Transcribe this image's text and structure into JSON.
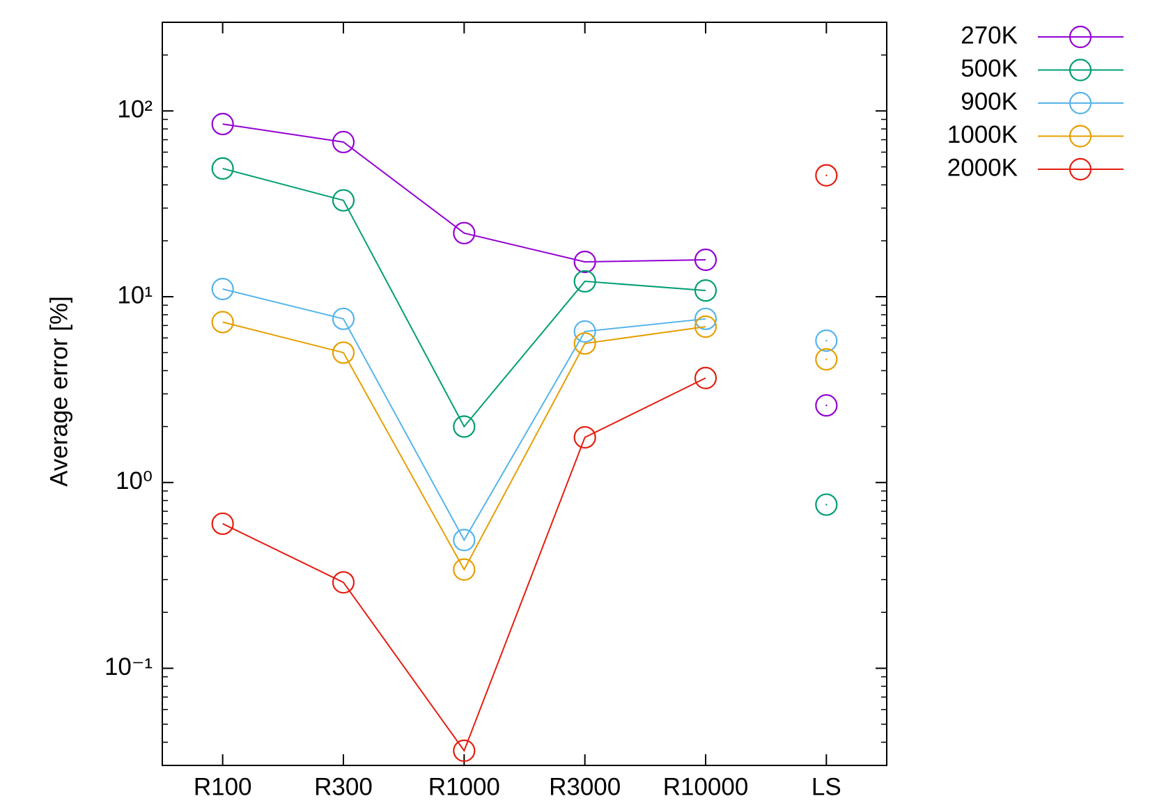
{
  "chart_data": {
    "type": "line",
    "y_label": "Average error [%]",
    "log_y": true,
    "categories": [
      "R100",
      "R300",
      "R1000",
      "R3000",
      "R10000",
      "LS"
    ],
    "unconnected": [
      "LS"
    ],
    "series": [
      {
        "name": "270K",
        "color": "#9400d3",
        "values": [
          85,
          68,
          22,
          15.4,
          15.8,
          2.6
        ]
      },
      {
        "name": "500K",
        "color": "#009e73",
        "values": [
          49,
          33,
          2.0,
          12.1,
          10.8,
          0.76
        ]
      },
      {
        "name": "900K",
        "color": "#56b4e9",
        "values": [
          11,
          7.6,
          0.49,
          6.5,
          7.6,
          5.8
        ]
      },
      {
        "name": "1000K",
        "color": "#e69f00",
        "values": [
          7.3,
          5.0,
          0.34,
          5.6,
          6.9,
          4.6
        ]
      },
      {
        "name": "2000K",
        "color": "#e51e10",
        "values": [
          0.6,
          0.29,
          0.036,
          1.75,
          3.65,
          45
        ]
      }
    ],
    "ylim": [
      0.03,
      300
    ],
    "yticks": [
      {
        "value": 0.1,
        "label": "10⁻¹"
      },
      {
        "value": 1,
        "label": "10⁰"
      },
      {
        "value": 10,
        "label": "10¹"
      },
      {
        "value": 100,
        "label": "10²"
      }
    ],
    "yminorticks": [
      0.03,
      0.04,
      0.05,
      0.06,
      0.07,
      0.08,
      0.09,
      0.2,
      0.3,
      0.4,
      0.5,
      0.6,
      0.7,
      0.8,
      0.9,
      2,
      3,
      4,
      5,
      6,
      7,
      8,
      9,
      20,
      30,
      40,
      50,
      60,
      70,
      80,
      90,
      200,
      300
    ],
    "legend": "outside-top-right"
  }
}
